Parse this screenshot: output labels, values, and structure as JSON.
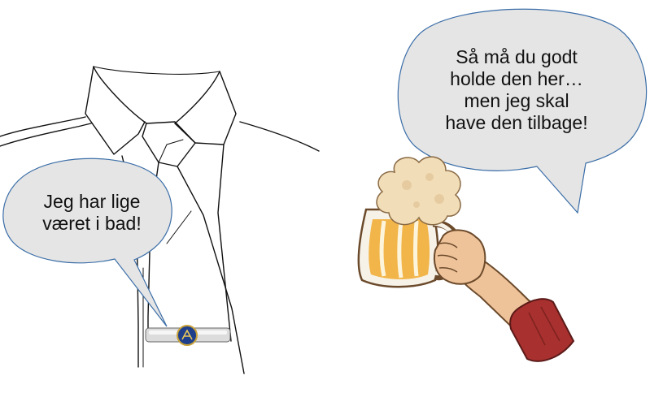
{
  "left_bubble": {
    "lines": [
      "Jeg har lige",
      "været i bad!"
    ]
  },
  "right_bubble": {
    "lines": [
      "Så må du godt",
      "holde den her…",
      "men jeg skal",
      "have den tilbage!"
    ]
  },
  "colors": {
    "bubble_fill": "#e5e5e5",
    "bubble_stroke": "#3b6ea8",
    "beer": "#f2b54a",
    "foam": "#f1ddb8",
    "skin": "#efc39a",
    "sleeve": "#a8302e",
    "tie_clip_badge": "#1f3f8a"
  },
  "icons": [
    "shirt-illustration",
    "tie-clip-icon",
    "beer-mug-icon",
    "hand-icon"
  ]
}
